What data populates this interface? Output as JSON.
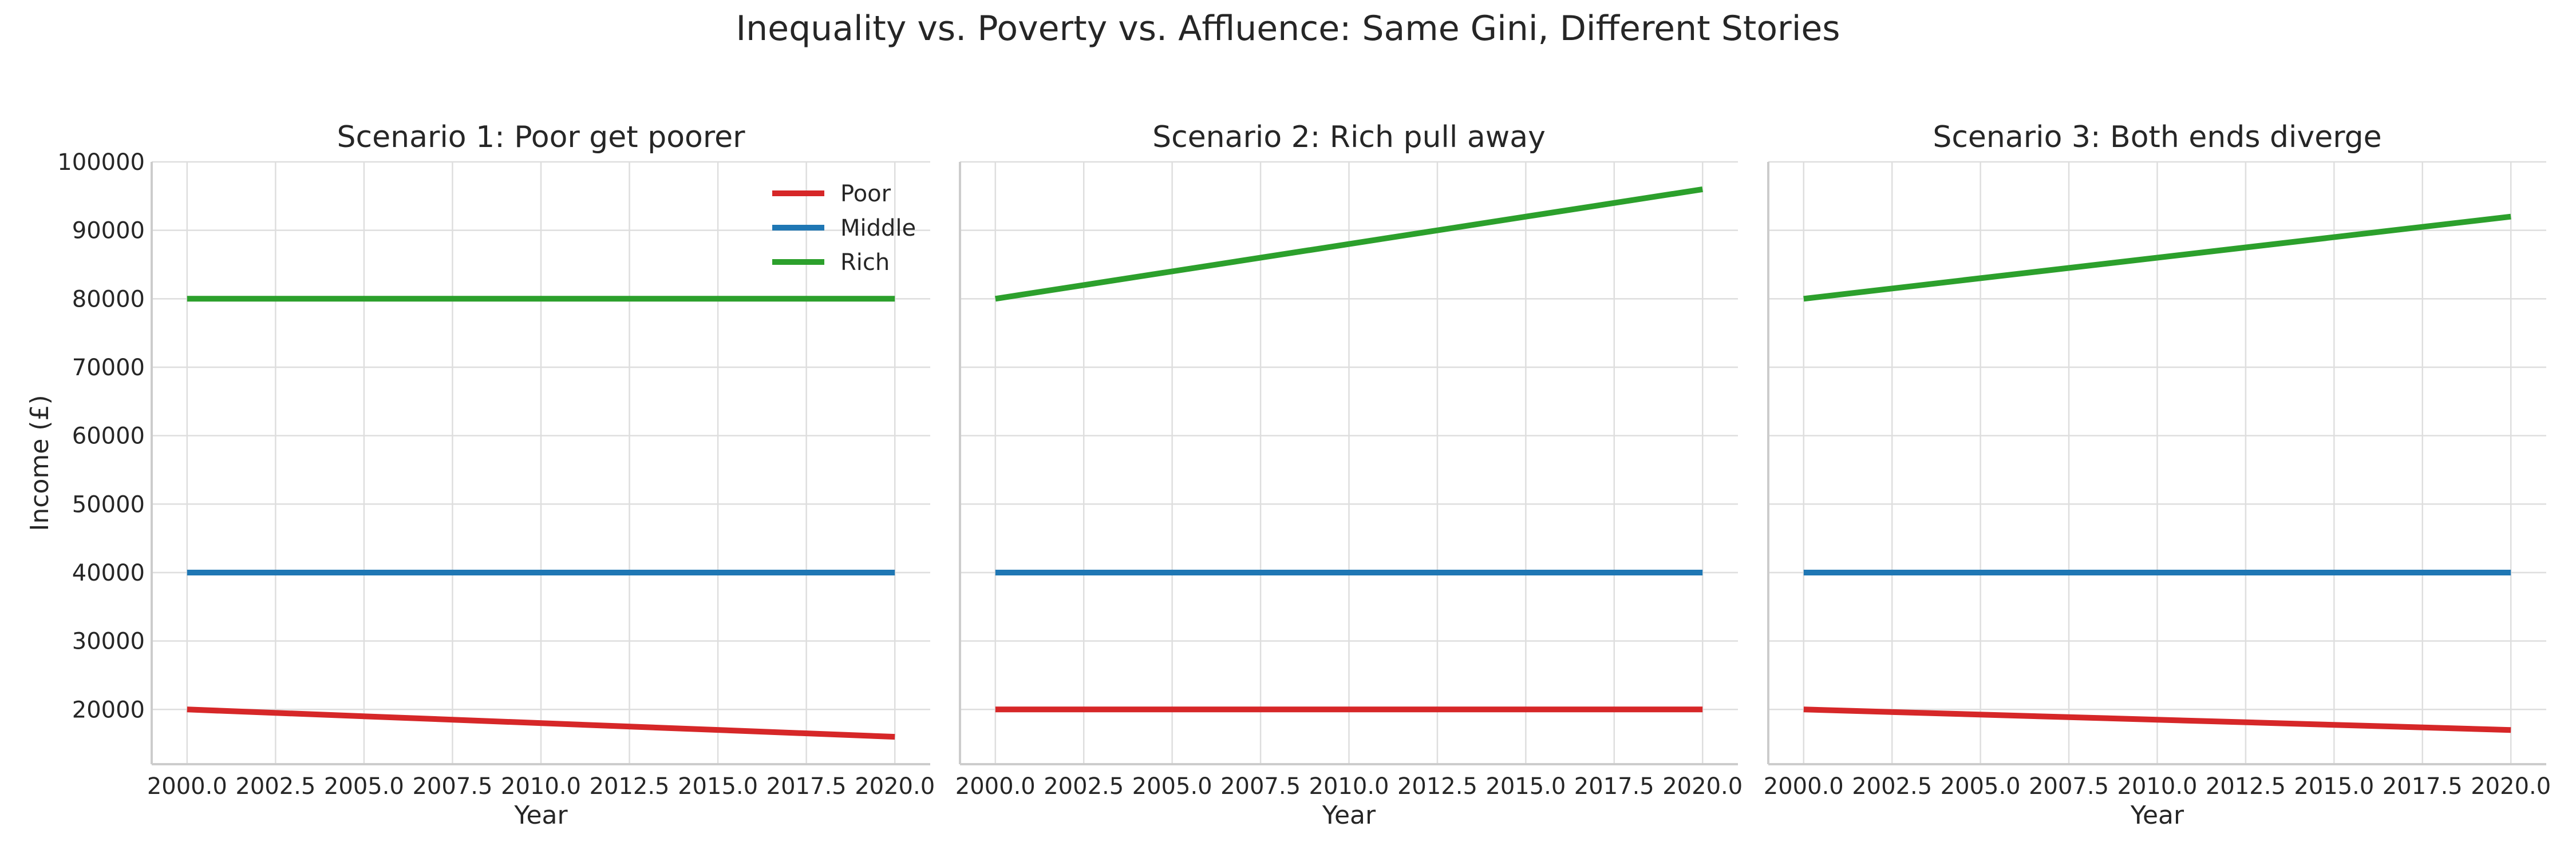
{
  "title": "Inequality vs. Poverty vs. Affluence: Same Gini, Different Stories",
  "colors": {
    "Poor": "#d62728",
    "Middle": "#1f77b4",
    "Rich": "#2ca02c"
  },
  "chart_data": [
    {
      "type": "line",
      "title": "Scenario 1: Poor get poorer",
      "xlabel": "Year",
      "ylabel": "Income (£)",
      "xlim": [
        1999.0,
        2021.0
      ],
      "ylim": [
        12000,
        100000
      ],
      "xticks": [
        "2000.0",
        "2002.5",
        "2005.0",
        "2007.5",
        "2010.0",
        "2012.5",
        "2015.0",
        "2017.5",
        "2020.0"
      ],
      "yticks": [
        "20000",
        "30000",
        "40000",
        "50000",
        "60000",
        "70000",
        "80000",
        "90000",
        "100000"
      ],
      "grid": true,
      "legend": "top-right",
      "series": [
        {
          "name": "Poor",
          "x": [
            2000,
            2020
          ],
          "values": [
            20000,
            16000
          ]
        },
        {
          "name": "Middle",
          "x": [
            2000,
            2020
          ],
          "values": [
            40000,
            40000
          ]
        },
        {
          "name": "Rich",
          "x": [
            2000,
            2020
          ],
          "values": [
            80000,
            80000
          ]
        }
      ]
    },
    {
      "type": "line",
      "title": "Scenario 2: Rich pull away",
      "xlabel": "Year",
      "ylabel": "",
      "xlim": [
        1999.0,
        2021.0
      ],
      "ylim": [
        12000,
        100000
      ],
      "xticks": [
        "2000.0",
        "2002.5",
        "2005.0",
        "2007.5",
        "2010.0",
        "2012.5",
        "2015.0",
        "2017.5",
        "2020.0"
      ],
      "yticks": [],
      "grid": true,
      "series": [
        {
          "x": [
            2000,
            2020
          ],
          "values": [
            20000,
            20000
          ]
        },
        {
          "x": [
            2000,
            2020
          ],
          "values": [
            40000,
            40000
          ]
        },
        {
          "x": [
            2000,
            2020
          ],
          "values": [
            80000,
            96000
          ]
        }
      ]
    },
    {
      "type": "line",
      "title": "Scenario 3: Both ends diverge",
      "xlabel": "Year",
      "ylabel": "",
      "xlim": [
        1999.0,
        2021.0
      ],
      "ylim": [
        12000,
        100000
      ],
      "xticks": [
        "2000.0",
        "2002.5",
        "2005.0",
        "2007.5",
        "2010.0",
        "2012.5",
        "2015.0",
        "2017.5",
        "2020.0"
      ],
      "yticks": [],
      "grid": true,
      "series": [
        {
          "x": [
            2000,
            2020
          ],
          "values": [
            20000,
            17000
          ]
        },
        {
          "x": [
            2000,
            2020
          ],
          "values": [
            40000,
            40000
          ]
        },
        {
          "x": [
            2000,
            2020
          ],
          "values": [
            80000,
            92000
          ]
        }
      ]
    }
  ]
}
